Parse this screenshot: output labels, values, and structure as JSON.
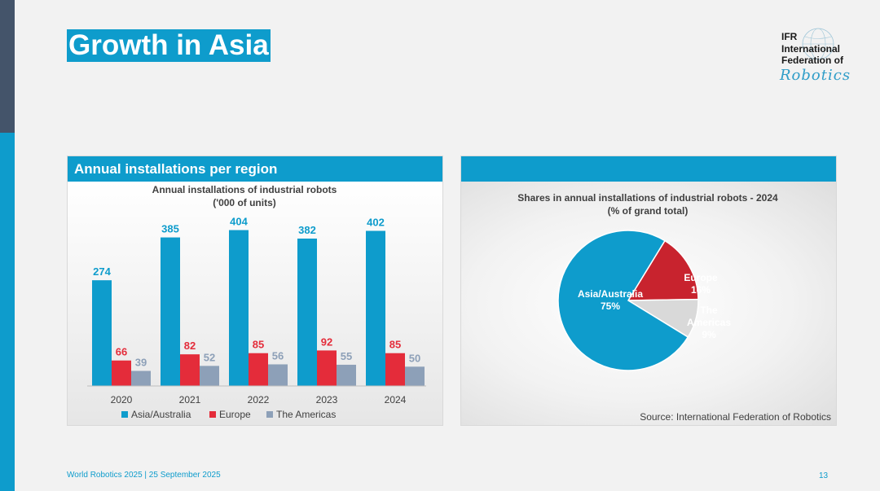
{
  "page": {
    "title": "Growth in Asia",
    "logo": {
      "line1": "IFR",
      "line2": "International",
      "line3": "Federation of",
      "script": "Robotics"
    },
    "footer_left": "World Robotics 2025  | 25 September 2025",
    "page_number": "13"
  },
  "panels": {
    "left_header": "Annual installations per region",
    "right_header": ""
  },
  "colors": {
    "asia": "#0e9ccc",
    "europe": "#e42c3a",
    "americas": "#8da0b8"
  },
  "chart_data": [
    {
      "type": "bar",
      "title": "Annual installations of industrial robots",
      "subtitle": "('000 of units)",
      "categories": [
        "2020",
        "2021",
        "2022",
        "2023",
        "2024"
      ],
      "series": [
        {
          "name": "Asia/Australia",
          "values": [
            274,
            385,
            404,
            382,
            402
          ]
        },
        {
          "name": "Europe",
          "values": [
            66,
            82,
            85,
            92,
            85
          ]
        },
        {
          "name": "The Americas",
          "values": [
            39,
            52,
            56,
            55,
            50
          ]
        }
      ],
      "ylim": [
        0,
        420
      ],
      "legend": "bottom",
      "grid": false
    },
    {
      "type": "pie",
      "title": "Shares in annual installations of industrial robots - 2024",
      "subtitle": "(% of grand total)",
      "slices": [
        {
          "label": "Asia/Australia",
          "value": 75,
          "display": "75%"
        },
        {
          "label": "Europe",
          "value": 16,
          "display": "16%"
        },
        {
          "label": "The Americas",
          "value": 9,
          "display": "9%"
        }
      ],
      "source": "Source: International Federation of Robotics"
    }
  ]
}
